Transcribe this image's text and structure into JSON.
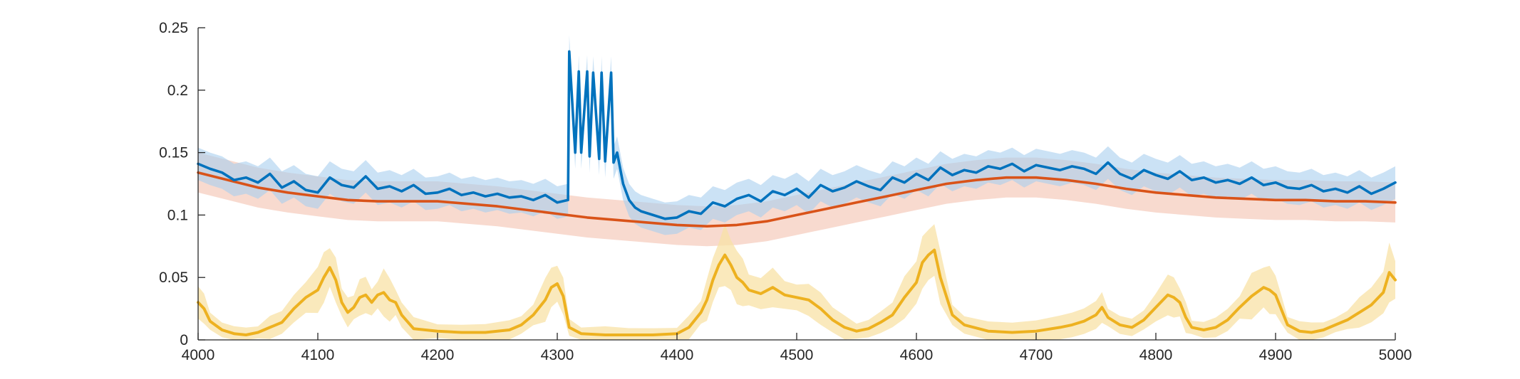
{
  "chart_data": {
    "type": "line",
    "title": "",
    "xlabel": "",
    "ylabel": "",
    "xlim": [
      4000,
      5000
    ],
    "ylim": [
      0,
      0.25
    ],
    "x_ticks": [
      4000,
      4100,
      4200,
      4300,
      4400,
      4500,
      4600,
      4700,
      4800,
      4900,
      5000
    ],
    "y_ticks": [
      0,
      0.05,
      0.1,
      0.15,
      0.2,
      0.25
    ],
    "x_tick_labels": [
      "4000",
      "4100",
      "4200",
      "4300",
      "4400",
      "4500",
      "4600",
      "4700",
      "4800",
      "4900",
      "5000"
    ],
    "y_tick_labels": [
      "0",
      "0.05",
      "0.1",
      "0.15",
      "0.2",
      "0.25"
    ],
    "grid": false,
    "legend": "none",
    "colors": {
      "blue_line": "#0072BD",
      "blue_band": "#A9CFEE",
      "red_line": "#D95319",
      "red_band": "#F4C2AF",
      "yellow_line": "#EDB120",
      "yellow_band": "#F8E2A6"
    },
    "series": [
      {
        "color_key": "blue",
        "x": [
          4000,
          4010,
          4020,
          4030,
          4040,
          4050,
          4060,
          4070,
          4080,
          4090,
          4100,
          4110,
          4120,
          4130,
          4140,
          4150,
          4160,
          4170,
          4180,
          4190,
          4200,
          4210,
          4220,
          4230,
          4240,
          4250,
          4260,
          4270,
          4280,
          4290,
          4300,
          4309,
          4310,
          4315,
          4318,
          4320,
          4325,
          4327,
          4330,
          4335,
          4337,
          4340,
          4345,
          4347,
          4350,
          4355,
          4360,
          4365,
          4370,
          4380,
          4390,
          4400,
          4410,
          4420,
          4430,
          4440,
          4450,
          4460,
          4470,
          4480,
          4490,
          4500,
          4510,
          4520,
          4530,
          4540,
          4550,
          4560,
          4570,
          4580,
          4590,
          4600,
          4610,
          4620,
          4630,
          4640,
          4650,
          4660,
          4670,
          4680,
          4690,
          4700,
          4710,
          4720,
          4730,
          4740,
          4750,
          4760,
          4770,
          4780,
          4790,
          4800,
          4810,
          4820,
          4830,
          4840,
          4850,
          4860,
          4870,
          4880,
          4890,
          4900,
          4910,
          4920,
          4930,
          4940,
          4950,
          4960,
          4970,
          4980,
          4990,
          5000
        ],
        "y": [
          0.141,
          0.137,
          0.134,
          0.128,
          0.13,
          0.126,
          0.133,
          0.122,
          0.127,
          0.12,
          0.118,
          0.13,
          0.124,
          0.122,
          0.131,
          0.121,
          0.123,
          0.119,
          0.124,
          0.117,
          0.118,
          0.121,
          0.116,
          0.118,
          0.115,
          0.117,
          0.114,
          0.115,
          0.112,
          0.116,
          0.11,
          0.112,
          0.231,
          0.15,
          0.215,
          0.15,
          0.215,
          0.147,
          0.214,
          0.145,
          0.214,
          0.143,
          0.214,
          0.142,
          0.15,
          0.125,
          0.112,
          0.106,
          0.103,
          0.1,
          0.097,
          0.098,
          0.103,
          0.101,
          0.11,
          0.107,
          0.113,
          0.116,
          0.111,
          0.119,
          0.116,
          0.121,
          0.114,
          0.124,
          0.119,
          0.122,
          0.127,
          0.123,
          0.12,
          0.13,
          0.126,
          0.133,
          0.128,
          0.138,
          0.132,
          0.136,
          0.134,
          0.139,
          0.137,
          0.141,
          0.135,
          0.14,
          0.138,
          0.136,
          0.139,
          0.137,
          0.133,
          0.142,
          0.133,
          0.129,
          0.136,
          0.132,
          0.129,
          0.135,
          0.128,
          0.13,
          0.126,
          0.128,
          0.125,
          0.13,
          0.124,
          0.126,
          0.122,
          0.121,
          0.124,
          0.119,
          0.121,
          0.118,
          0.123,
          0.117,
          0.121,
          0.126
        ],
        "band": 0.013
      },
      {
        "color_key": "red",
        "x": [
          4000,
          4025,
          4050,
          4075,
          4100,
          4125,
          4150,
          4175,
          4200,
          4225,
          4250,
          4275,
          4300,
          4325,
          4350,
          4375,
          4400,
          4425,
          4450,
          4475,
          4500,
          4525,
          4550,
          4575,
          4600,
          4625,
          4650,
          4675,
          4700,
          4725,
          4750,
          4775,
          4800,
          4825,
          4850,
          4875,
          4900,
          4925,
          4950,
          4975,
          5000
        ],
        "y": [
          0.134,
          0.128,
          0.122,
          0.118,
          0.115,
          0.112,
          0.111,
          0.111,
          0.111,
          0.109,
          0.107,
          0.104,
          0.101,
          0.098,
          0.096,
          0.094,
          0.092,
          0.091,
          0.092,
          0.095,
          0.1,
          0.105,
          0.11,
          0.115,
          0.12,
          0.125,
          0.128,
          0.13,
          0.13,
          0.128,
          0.125,
          0.121,
          0.118,
          0.116,
          0.114,
          0.113,
          0.112,
          0.112,
          0.111,
          0.111,
          0.11
        ],
        "band": 0.016
      },
      {
        "color_key": "yellow",
        "x": [
          4000,
          4005,
          4010,
          4020,
          4030,
          4040,
          4050,
          4060,
          4070,
          4080,
          4090,
          4100,
          4105,
          4110,
          4115,
          4120,
          4125,
          4130,
          4135,
          4140,
          4145,
          4150,
          4155,
          4160,
          4165,
          4170,
          4180,
          4200,
          4220,
          4240,
          4260,
          4270,
          4280,
          4290,
          4295,
          4300,
          4305,
          4310,
          4320,
          4340,
          4360,
          4380,
          4400,
          4410,
          4420,
          4425,
          4430,
          4435,
          4440,
          4445,
          4450,
          4455,
          4460,
          4470,
          4480,
          4490,
          4500,
          4510,
          4520,
          4530,
          4540,
          4550,
          4560,
          4570,
          4580,
          4590,
          4600,
          4605,
          4610,
          4615,
          4620,
          4630,
          4640,
          4660,
          4680,
          4700,
          4720,
          4730,
          4740,
          4750,
          4755,
          4760,
          4770,
          4780,
          4790,
          4800,
          4810,
          4815,
          4820,
          4825,
          4830,
          4840,
          4850,
          4860,
          4870,
          4880,
          4890,
          4895,
          4900,
          4905,
          4910,
          4920,
          4930,
          4940,
          4950,
          4960,
          4970,
          4980,
          4990,
          4995,
          5000
        ],
        "y": [
          0.03,
          0.025,
          0.015,
          0.008,
          0.005,
          0.004,
          0.006,
          0.01,
          0.014,
          0.025,
          0.034,
          0.04,
          0.05,
          0.058,
          0.048,
          0.03,
          0.022,
          0.026,
          0.034,
          0.036,
          0.03,
          0.036,
          0.038,
          0.032,
          0.03,
          0.02,
          0.009,
          0.007,
          0.006,
          0.006,
          0.008,
          0.012,
          0.02,
          0.032,
          0.042,
          0.045,
          0.035,
          0.01,
          0.005,
          0.004,
          0.004,
          0.004,
          0.005,
          0.01,
          0.022,
          0.032,
          0.048,
          0.06,
          0.068,
          0.06,
          0.05,
          0.046,
          0.04,
          0.037,
          0.042,
          0.036,
          0.034,
          0.032,
          0.025,
          0.016,
          0.01,
          0.007,
          0.009,
          0.014,
          0.02,
          0.034,
          0.046,
          0.062,
          0.068,
          0.072,
          0.05,
          0.02,
          0.012,
          0.007,
          0.006,
          0.007,
          0.01,
          0.012,
          0.015,
          0.02,
          0.026,
          0.018,
          0.012,
          0.01,
          0.016,
          0.026,
          0.036,
          0.034,
          0.03,
          0.018,
          0.01,
          0.008,
          0.01,
          0.016,
          0.026,
          0.035,
          0.042,
          0.04,
          0.036,
          0.024,
          0.012,
          0.007,
          0.006,
          0.008,
          0.012,
          0.016,
          0.022,
          0.028,
          0.038,
          0.054,
          0.048
        ],
        "band": 0.012,
        "noisy_band": true
      }
    ]
  }
}
